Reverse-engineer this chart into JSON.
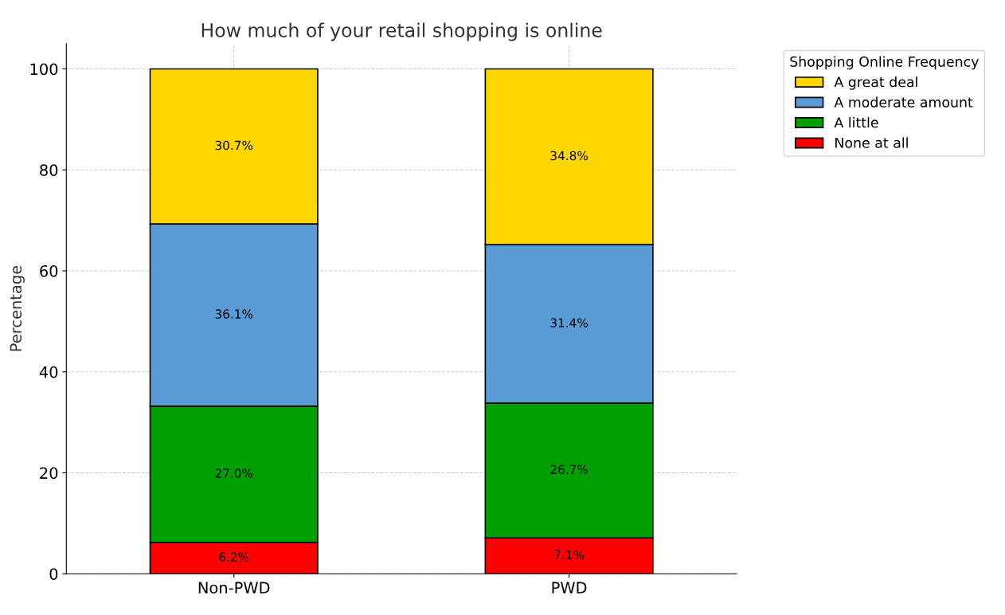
{
  "chart_data": {
    "type": "bar",
    "stacked": true,
    "title": "How much of your retail shopping is online",
    "ylabel": "Percentage",
    "legend_title": "Shopping Online Frequency",
    "categories": [
      "Non-PWD",
      "PWD"
    ],
    "series": [
      {
        "name": "None at all",
        "color": "#ff0000",
        "values": [
          6.2,
          7.1
        ],
        "value_labels": [
          "6.2%",
          "7.1%"
        ]
      },
      {
        "name": "A little",
        "color": "#00a000",
        "values": [
          27.0,
          26.7
        ],
        "value_labels": [
          "27.0%",
          "26.7%"
        ]
      },
      {
        "name": "A moderate amount",
        "color": "#5b9bd5",
        "values": [
          36.1,
          31.4
        ],
        "value_labels": [
          "36.1%",
          "31.4%"
        ]
      },
      {
        "name": "A great deal",
        "color": "#ffd700",
        "values": [
          30.7,
          34.8
        ],
        "value_labels": [
          "30.7%",
          "34.8%"
        ]
      }
    ],
    "ylim": [
      0,
      105
    ],
    "yticks": [
      0,
      20,
      40,
      60,
      80,
      100
    ],
    "grid": true,
    "legend": "top right"
  }
}
